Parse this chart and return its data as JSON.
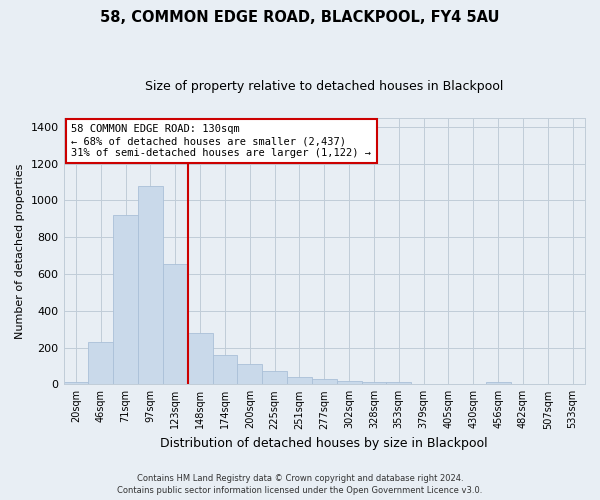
{
  "title": "58, COMMON EDGE ROAD, BLACKPOOL, FY4 5AU",
  "subtitle": "Size of property relative to detached houses in Blackpool",
  "xlabel": "Distribution of detached houses by size in Blackpool",
  "ylabel": "Number of detached properties",
  "bar_color": "#c9d9ea",
  "bar_edge_color": "#aac0d8",
  "vline_color": "#cc0000",
  "annotation_title": "58 COMMON EDGE ROAD: 130sqm",
  "annotation_line1": "← 68% of detached houses are smaller (2,437)",
  "annotation_line2": "31% of semi-detached houses are larger (1,122) →",
  "categories": [
    "20sqm",
    "46sqm",
    "71sqm",
    "97sqm",
    "123sqm",
    "148sqm",
    "174sqm",
    "200sqm",
    "225sqm",
    "251sqm",
    "277sqm",
    "302sqm",
    "328sqm",
    "353sqm",
    "379sqm",
    "405sqm",
    "430sqm",
    "456sqm",
    "482sqm",
    "507sqm",
    "533sqm"
  ],
  "values": [
    15,
    230,
    920,
    1080,
    655,
    280,
    160,
    110,
    70,
    40,
    30,
    20,
    15,
    10,
    0,
    0,
    0,
    10,
    0,
    0,
    0
  ],
  "ylim": [
    0,
    1450
  ],
  "yticks": [
    0,
    200,
    400,
    600,
    800,
    1000,
    1200,
    1400
  ],
  "footer_line1": "Contains HM Land Registry data © Crown copyright and database right 2024.",
  "footer_line2": "Contains public sector information licensed under the Open Government Licence v3.0.",
  "outer_bg": "#e8eef4",
  "plot_bg": "#e8eef4",
  "grid_color": "#c0ccd8",
  "ann_box_bg": "#ffffff"
}
